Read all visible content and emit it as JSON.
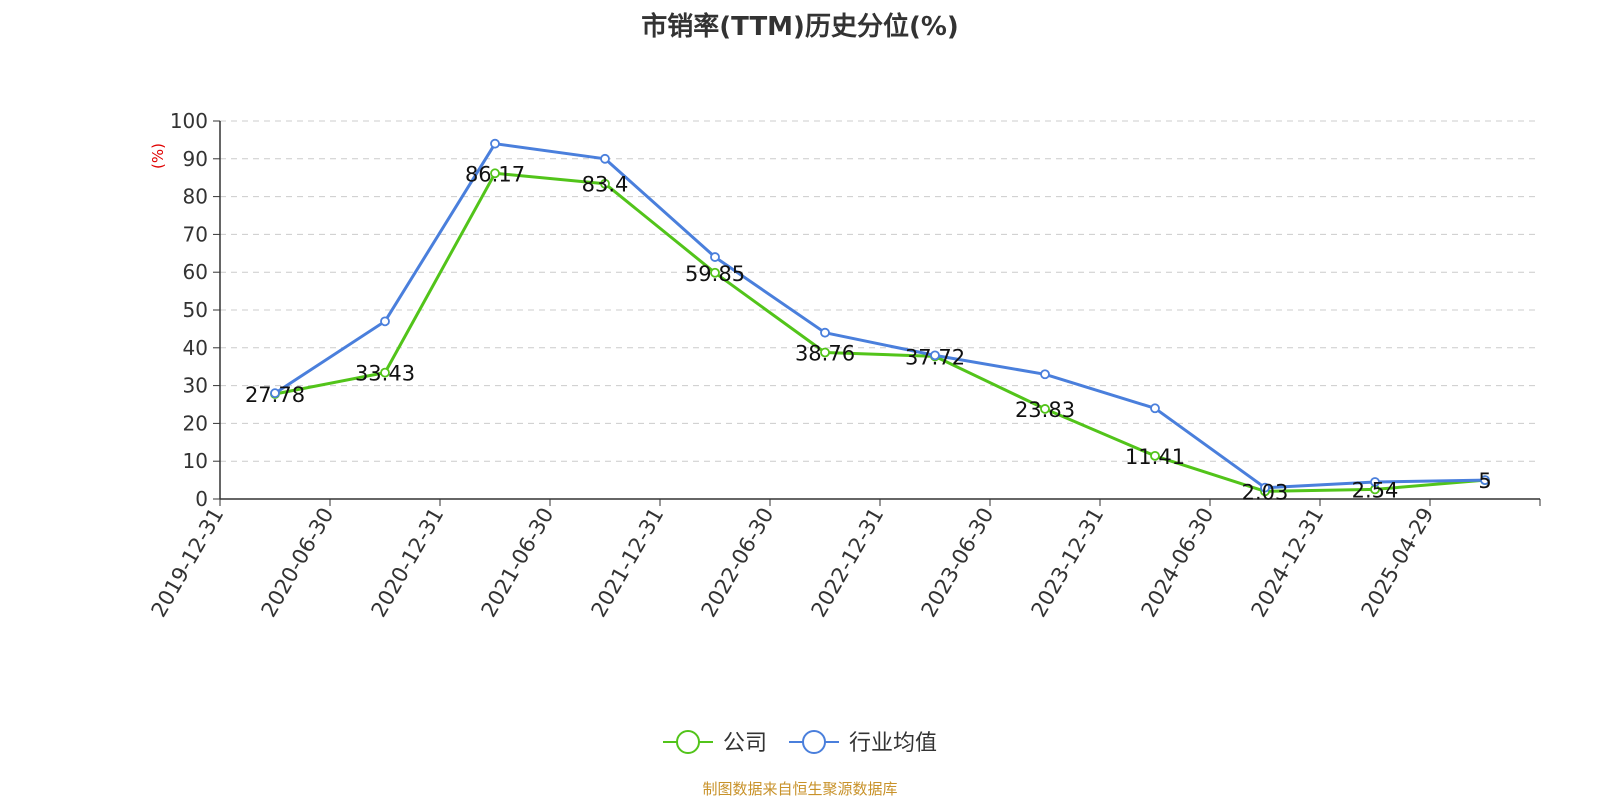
{
  "chart_data": {
    "type": "line",
    "title": "市销率(TTM)历史分位(%)",
    "ylabel": "(%)",
    "xlabel": "",
    "ylim": [
      0,
      100
    ],
    "yticks": [
      0,
      10,
      20,
      30,
      40,
      50,
      60,
      70,
      80,
      90,
      100
    ],
    "categories": [
      "2019-12-31",
      "2020-06-30",
      "2020-12-31",
      "2021-06-30",
      "2021-12-31",
      "2022-06-30",
      "2022-12-31",
      "2023-06-30",
      "2023-12-31",
      "2024-06-30",
      "2024-12-31",
      "2025-04-29"
    ],
    "grid": "horizontal-dashed",
    "legend_position": "bottom-center",
    "series": [
      {
        "name": "公司",
        "color": "#52c41a",
        "values": [
          27.78,
          33.43,
          86.17,
          83.4,
          59.85,
          38.76,
          37.72,
          23.83,
          11.41,
          2.03,
          2.54,
          5
        ],
        "labels": [
          "27.78",
          "33.43",
          "86.17",
          "83.4",
          "59.85",
          "38.76",
          "37.72",
          "23.83",
          "11.41",
          "2.03",
          "2.54",
          "5"
        ]
      },
      {
        "name": "行业均值",
        "color": "#4a7fdc",
        "values": [
          28,
          47,
          94,
          90,
          64,
          44,
          38,
          33,
          24,
          3,
          4.5,
          5
        ]
      }
    ]
  },
  "source": {
    "text": "制图数据来自恒生聚源数据库",
    "color": "#c8922a"
  },
  "colors": {
    "axis": "#333333",
    "grid": "#cccccc",
    "ylabel": "#e00000",
    "text": "#333333"
  }
}
